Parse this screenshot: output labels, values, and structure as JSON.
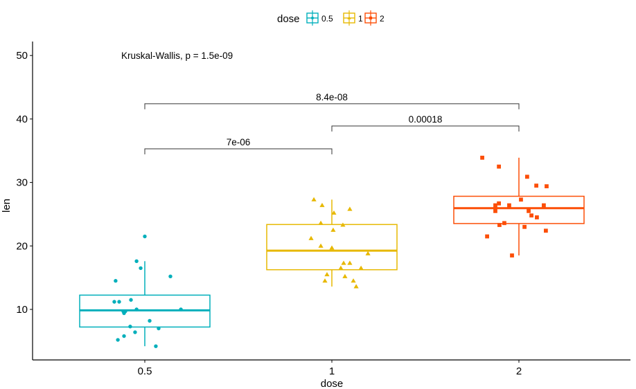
{
  "chart_data": {
    "type": "boxplot",
    "xlabel": "dose",
    "ylabel": "len",
    "categories": [
      "0.5",
      "1",
      "2"
    ],
    "ylim": [
      2,
      52.3
    ],
    "yticks": [
      10,
      20,
      30,
      40,
      50
    ],
    "legend": {
      "title": "dose",
      "position": "top",
      "entries": [
        "0.5",
        "1",
        "2"
      ]
    },
    "colors": [
      "#00AFBB",
      "#E7B800",
      "#FC4E07"
    ],
    "shapes": [
      "circle",
      "triangle",
      "square"
    ],
    "boxes": [
      {
        "category": "0.5",
        "min": 4.2,
        "q1": 7.225,
        "median": 9.85,
        "q3": 12.25,
        "max": 17.6
      },
      {
        "category": "1",
        "min": 13.6,
        "q1": 16.25,
        "median": 19.25,
        "q3": 23.375,
        "max": 27.3
      },
      {
        "category": "2",
        "min": 18.5,
        "q1": 23.525,
        "median": 25.95,
        "q3": 27.825,
        "max": 33.9
      }
    ],
    "points": [
      [
        [
          0,
          21.5
        ],
        [
          -0.044,
          17.6
        ],
        [
          -0.022,
          16.5
        ],
        [
          0.137,
          15.2
        ],
        [
          -0.156,
          14.5
        ],
        [
          -0.163,
          11.2
        ],
        [
          -0.137,
          11.2
        ],
        [
          -0.074,
          11.5
        ],
        [
          -0.044,
          10.0
        ],
        [
          0.193,
          10.0
        ],
        [
          -0.111,
          9.4
        ],
        [
          -0.104,
          9.7
        ],
        [
          -0.115,
          9.7
        ],
        [
          0.026,
          8.2
        ],
        [
          -0.078,
          7.3
        ],
        [
          0.074,
          7.0
        ],
        [
          -0.052,
          6.4
        ],
        [
          -0.111,
          5.8
        ],
        [
          -0.144,
          5.2
        ],
        [
          0.059,
          4.2
        ]
      ],
      [
        [
          -0.096,
          27.3
        ],
        [
          -0.052,
          26.4
        ],
        [
          0.096,
          25.8
        ],
        [
          0.011,
          25.2
        ],
        [
          -0.059,
          23.6
        ],
        [
          0.059,
          23.3
        ],
        [
          0.007,
          22.5
        ],
        [
          -0.111,
          21.2
        ],
        [
          -0.059,
          20.0
        ],
        [
          0,
          19.7
        ],
        [
          0.193,
          18.8
        ],
        [
          0.063,
          17.3
        ],
        [
          0.096,
          17.3
        ],
        [
          0.048,
          16.5
        ],
        [
          0.156,
          16.5
        ],
        [
          -0.026,
          15.5
        ],
        [
          0.07,
          15.2
        ],
        [
          -0.037,
          14.5
        ],
        [
          0.115,
          14.5
        ],
        [
          0.13,
          13.6
        ]
      ],
      [
        [
          -0.196,
          33.9
        ],
        [
          -0.107,
          32.5
        ],
        [
          0.044,
          30.9
        ],
        [
          0.093,
          29.5
        ],
        [
          0.148,
          29.4
        ],
        [
          0.011,
          27.3
        ],
        [
          -0.107,
          26.7
        ],
        [
          -0.126,
          26.4
        ],
        [
          -0.052,
          26.4
        ],
        [
          0.133,
          26.4
        ],
        [
          -0.126,
          25.5
        ],
        [
          0.052,
          25.5
        ],
        [
          0.067,
          24.8
        ],
        [
          0.096,
          24.5
        ],
        [
          -0.078,
          23.6
        ],
        [
          -0.104,
          23.3
        ],
        [
          0.03,
          23.0
        ],
        [
          0.144,
          22.4
        ],
        [
          -0.17,
          21.5
        ],
        [
          -0.037,
          18.5
        ]
      ]
    ],
    "comparisons": [
      {
        "from": 0,
        "to": 1,
        "y": 35.3,
        "label": "7e-06"
      },
      {
        "from": 1,
        "to": 2,
        "y": 38.9,
        "label": "0.00018"
      },
      {
        "from": 0,
        "to": 2,
        "y": 42.4,
        "label": "8.4e-08"
      }
    ],
    "global_test": {
      "label": "Kruskal-Wallis, p = 1.5e-09",
      "y": 50
    }
  }
}
